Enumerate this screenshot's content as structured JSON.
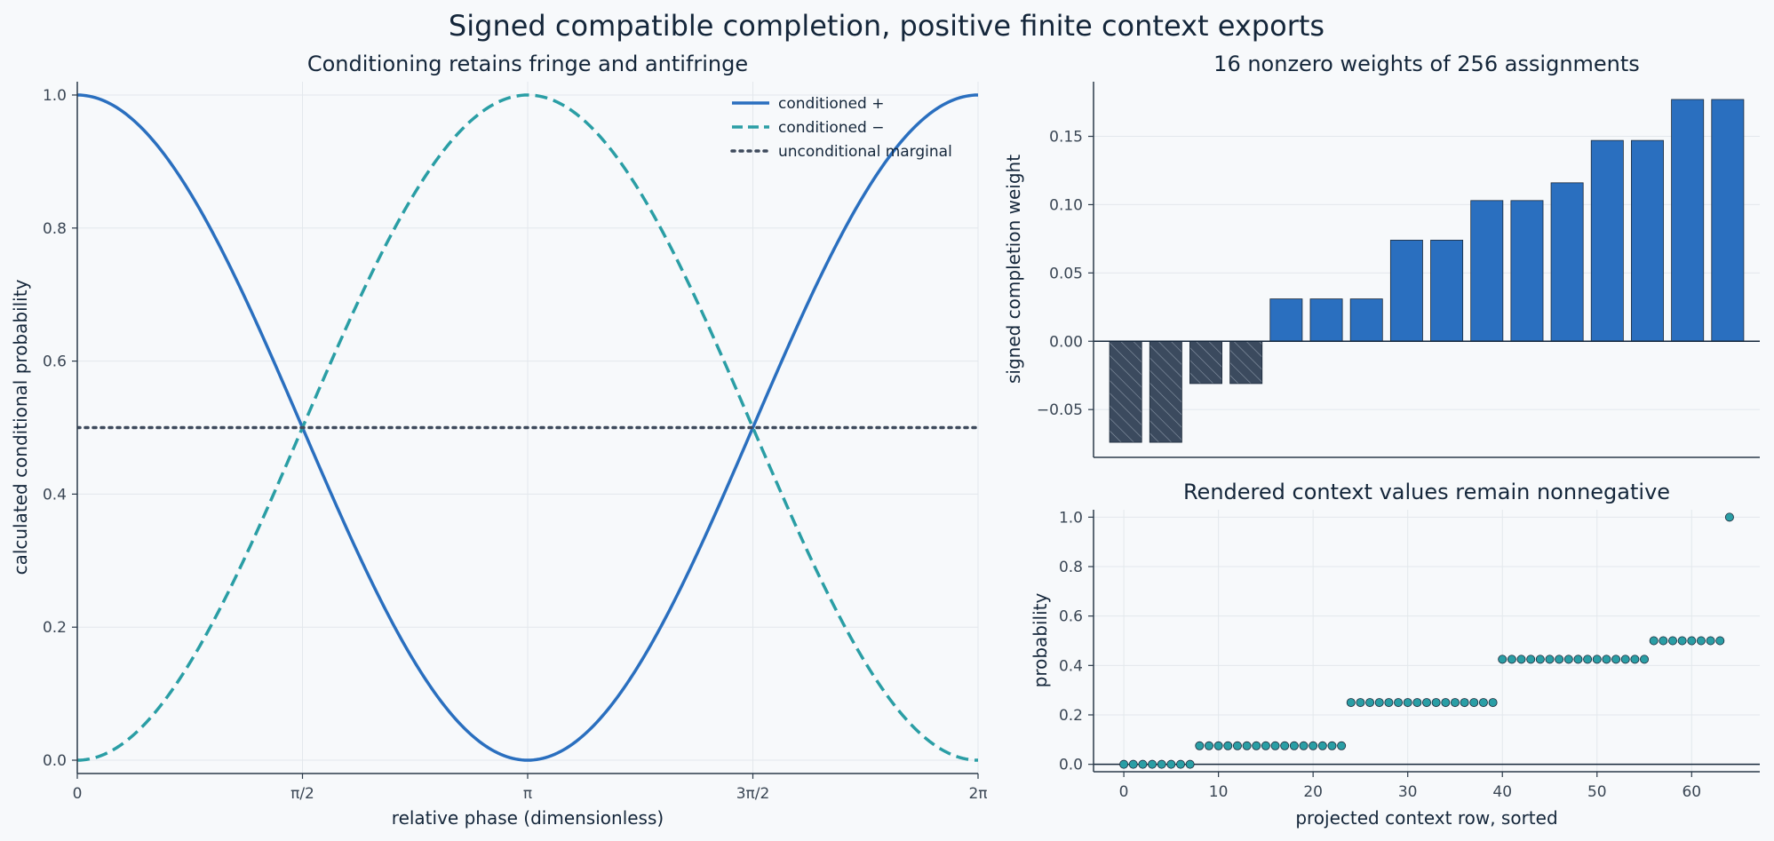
{
  "figure": {
    "suptitle": "Signed compatible completion, positive finite context exports"
  },
  "colors": {
    "background": "#f7f9fb",
    "axis": "#2b3a4a",
    "text": "#14263a",
    "tick_text": "#3a4654",
    "grid": "#e3e8ec",
    "blue": "#2a6fbf",
    "teal": "#2a9ea5",
    "dark": "#3e4a5c",
    "negative_bar": "#3b4a5e"
  },
  "chart_data": [
    {
      "id": "phase",
      "type": "line",
      "title": "Conditioning retains fringe and antifringe",
      "xlabel": "relative phase (dimensionless)",
      "ylabel": "calculated conditional probability",
      "xlim": [
        0,
        6.283185
      ],
      "ylim": [
        -0.02,
        1.02
      ],
      "xticks": [
        0,
        1.570796,
        3.141593,
        4.712389,
        6.283185
      ],
      "xtick_labels": [
        "0",
        "π/2",
        "π",
        "3π/2",
        "2π"
      ],
      "yticks": [
        0.0,
        0.2,
        0.4,
        0.6,
        0.8,
        1.0
      ],
      "ytick_labels": [
        "0.0",
        "0.2",
        "0.4",
        "0.6",
        "0.8",
        "1.0"
      ],
      "grid": true,
      "legend_position": "top-right",
      "series": [
        {
          "name": "conditioned +",
          "function": "cos^2(x/2)",
          "style": "solid",
          "color": "#2a6fbf"
        },
        {
          "name": "conditioned −",
          "function": "sin^2(x/2)",
          "style": "dashed",
          "color": "#2a9ea5"
        },
        {
          "name": "unconditional marginal",
          "function": "0.5",
          "style": "dotted",
          "color": "#3e4a5c"
        }
      ]
    },
    {
      "id": "weights",
      "type": "bar",
      "title": "16 nonzero weights of 256 assignments",
      "xlabel": "",
      "ylabel": "signed completion weight",
      "ylim": [
        -0.085,
        0.19
      ],
      "yticks": [
        -0.05,
        0.0,
        0.05,
        0.1,
        0.15
      ],
      "ytick_labels": [
        "−0.05",
        "0.00",
        "0.05",
        "0.10",
        "0.15"
      ],
      "grid": true,
      "values": [
        -0.074,
        -0.074,
        -0.031,
        -0.031,
        0.031,
        0.031,
        0.031,
        0.074,
        0.074,
        0.103,
        0.103,
        0.116,
        0.147,
        0.147,
        0.177,
        0.177
      ],
      "negative_hatched": true
    },
    {
      "id": "context",
      "type": "scatter",
      "title": "Rendered context values remain nonnegative",
      "xlabel": "projected context row, sorted",
      "ylabel": "probability",
      "xlim": [
        -3.2,
        67.2
      ],
      "ylim": [
        -0.03,
        1.03
      ],
      "xticks": [
        0,
        10,
        20,
        30,
        40,
        50,
        60
      ],
      "xtick_labels": [
        "0",
        "10",
        "20",
        "30",
        "40",
        "50",
        "60"
      ],
      "yticks": [
        0.0,
        0.2,
        0.4,
        0.6,
        0.8,
        1.0
      ],
      "ytick_labels": [
        "0.0",
        "0.2",
        "0.4",
        "0.6",
        "0.8",
        "1.0"
      ],
      "grid": true,
      "groups": [
        {
          "x_start": 0,
          "x_end": 7,
          "y": 0.0
        },
        {
          "x_start": 8,
          "x_end": 23,
          "y": 0.075
        },
        {
          "x_start": 24,
          "x_end": 39,
          "y": 0.25
        },
        {
          "x_start": 40,
          "x_end": 55,
          "y": 0.425
        },
        {
          "x_start": 56,
          "x_end": 63,
          "y": 0.5
        },
        {
          "x_start": 64,
          "x_end": 64,
          "y": 1.0
        }
      ]
    }
  ]
}
